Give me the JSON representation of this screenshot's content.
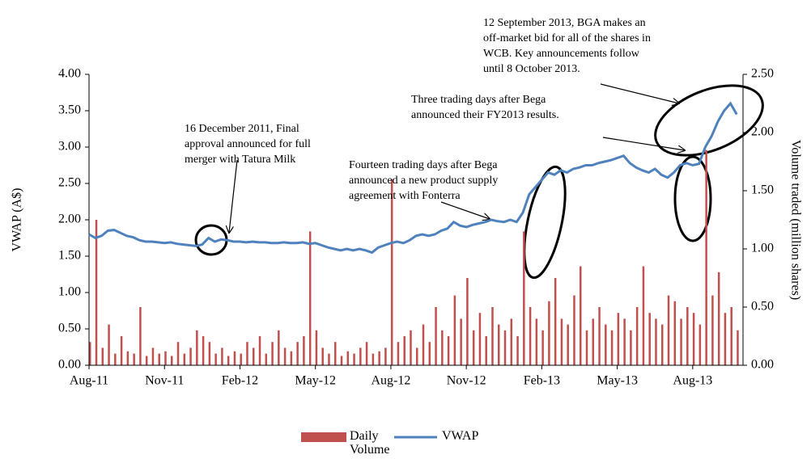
{
  "chart_data": {
    "type": "bar-line",
    "ylabel": "VWAP (A$)",
    "y2label": "Volume traded (million shares)",
    "xlim": [
      0,
      26
    ],
    "xticks": [
      {
        "value": 0,
        "label": "Aug-11"
      },
      {
        "value": 3,
        "label": "Nov-11"
      },
      {
        "value": 6,
        "label": "Feb-12"
      },
      {
        "value": 9,
        "label": "May-12"
      },
      {
        "value": 12,
        "label": "Aug-12"
      },
      {
        "value": 15,
        "label": "Nov-12"
      },
      {
        "value": 18,
        "label": "Feb-13"
      },
      {
        "value": 21,
        "label": "May-13"
      },
      {
        "value": 24,
        "label": "Aug-13"
      }
    ],
    "ylim": [
      0,
      4
    ],
    "yticks": [
      {
        "value": 0,
        "label": "0.00"
      },
      {
        "value": 0.5,
        "label": "0.50"
      },
      {
        "value": 1,
        "label": "1.00"
      },
      {
        "value": 1.5,
        "label": "1.50"
      },
      {
        "value": 2,
        "label": "2.00"
      },
      {
        "value": 2.5,
        "label": "2.50"
      },
      {
        "value": 3,
        "label": "3.00"
      },
      {
        "value": 3.5,
        "label": "3.50"
      },
      {
        "value": 4,
        "label": "4.00"
      }
    ],
    "y2lim": [
      0,
      2.5
    ],
    "y2ticks": [
      {
        "value": 0,
        "label": "0.00"
      },
      {
        "value": 0.5,
        "label": "0.50"
      },
      {
        "value": 1,
        "label": "1.00"
      },
      {
        "value": 1.5,
        "label": "1.50"
      },
      {
        "value": 2,
        "label": "2.00"
      },
      {
        "value": 2.5,
        "label": "2.50"
      }
    ],
    "x": [
      0,
      0.25,
      0.5,
      0.75,
      1,
      1.25,
      1.5,
      1.75,
      2,
      2.25,
      2.5,
      2.75,
      3,
      3.25,
      3.5,
      3.75,
      4,
      4.25,
      4.5,
      4.75,
      5,
      5.25,
      5.5,
      5.75,
      6,
      6.25,
      6.5,
      6.75,
      7,
      7.25,
      7.5,
      7.75,
      8,
      8.25,
      8.5,
      8.75,
      9,
      9.25,
      9.5,
      9.75,
      10,
      10.25,
      10.5,
      10.75,
      11,
      11.25,
      11.5,
      11.75,
      12,
      12.25,
      12.5,
      12.75,
      13,
      13.25,
      13.5,
      13.75,
      14,
      14.25,
      14.5,
      14.75,
      15,
      15.25,
      15.5,
      15.75,
      16,
      16.25,
      16.5,
      16.75,
      17,
      17.25,
      17.5,
      17.75,
      18,
      18.25,
      18.5,
      18.75,
      19,
      19.25,
      19.5,
      19.75,
      20,
      20.25,
      20.5,
      20.75,
      21,
      21.25,
      21.5,
      21.75,
      22,
      22.25,
      22.5,
      22.75,
      23,
      23.25,
      23.5,
      23.75,
      24,
      24.25,
      24.5,
      24.75,
      25,
      25.25,
      25.5,
      25.75
    ],
    "series": [
      {
        "name": "Daily Volume",
        "color": "#c0504d",
        "axis": "y2",
        "values": [
          0.2,
          1.25,
          0.15,
          0.35,
          0.1,
          0.25,
          0.12,
          0.1,
          0.5,
          0.08,
          0.15,
          0.1,
          0.12,
          0.08,
          0.2,
          0.1,
          0.15,
          0.3,
          0.25,
          0.2,
          0.1,
          0.15,
          0.08,
          0.12,
          0.1,
          0.2,
          0.15,
          0.25,
          0.1,
          0.2,
          0.3,
          0.15,
          0.12,
          0.2,
          0.25,
          1.15,
          0.3,
          0.15,
          0.1,
          0.2,
          0.08,
          0.12,
          0.1,
          0.15,
          0.2,
          0.1,
          0.12,
          0.15,
          1.6,
          0.2,
          0.25,
          0.3,
          0.15,
          0.35,
          0.2,
          0.5,
          0.3,
          0.25,
          0.6,
          0.4,
          0.75,
          0.3,
          0.45,
          0.25,
          0.5,
          0.35,
          0.3,
          0.4,
          0.25,
          1.15,
          0.5,
          0.4,
          0.3,
          0.55,
          0.75,
          0.4,
          0.35,
          0.6,
          0.85,
          0.3,
          0.4,
          0.5,
          0.35,
          0.3,
          0.45,
          0.4,
          0.3,
          0.5,
          0.85,
          0.45,
          0.4,
          0.35,
          0.6,
          0.55,
          0.4,
          0.5,
          0.45,
          0.35,
          1.85,
          0.6,
          0.8,
          0.45,
          0.5,
          0.3
        ]
      },
      {
        "name": "VWAP",
        "color": "#4f81bd",
        "values": [
          1.8,
          1.75,
          1.78,
          1.85,
          1.86,
          1.82,
          1.78,
          1.76,
          1.72,
          1.7,
          1.7,
          1.69,
          1.68,
          1.69,
          1.67,
          1.66,
          1.65,
          1.64,
          1.66,
          1.75,
          1.7,
          1.73,
          1.72,
          1.7,
          1.7,
          1.69,
          1.7,
          1.69,
          1.69,
          1.68,
          1.68,
          1.69,
          1.68,
          1.68,
          1.69,
          1.67,
          1.68,
          1.65,
          1.62,
          1.6,
          1.58,
          1.6,
          1.58,
          1.6,
          1.58,
          1.55,
          1.62,
          1.65,
          1.68,
          1.7,
          1.68,
          1.72,
          1.78,
          1.8,
          1.78,
          1.8,
          1.85,
          1.88,
          1.97,
          1.92,
          1.9,
          1.93,
          1.95,
          1.97,
          2,
          1.98,
          1.97,
          2,
          1.97,
          2.1,
          2.35,
          2.45,
          2.55,
          2.65,
          2.62,
          2.68,
          2.65,
          2.7,
          2.72,
          2.75,
          2.75,
          2.78,
          2.8,
          2.82,
          2.85,
          2.88,
          2.78,
          2.72,
          2.68,
          2.65,
          2.7,
          2.62,
          2.58,
          2.65,
          2.75,
          2.78,
          2.75,
          2.77,
          3,
          3.15,
          3.35,
          3.5,
          3.6,
          3.45
        ]
      }
    ],
    "annotations": [
      {
        "lines": [
          "16 December 2011, Final",
          "approval announced for full",
          "merger with Tatura Milk"
        ]
      },
      {
        "lines": [
          "Fourteen trading days after Bega",
          "announced a new product supply",
          "agreement with Fonterra"
        ]
      },
      {
        "lines": [
          "Three trading days after Bega",
          "announced their FY2013 results."
        ]
      },
      {
        "lines": [
          "12 September 2013, BGA makes an",
          "off-market bid for all of the shares in",
          "WCB. Key announcements follow",
          "until 8 October 2013."
        ]
      }
    ]
  }
}
